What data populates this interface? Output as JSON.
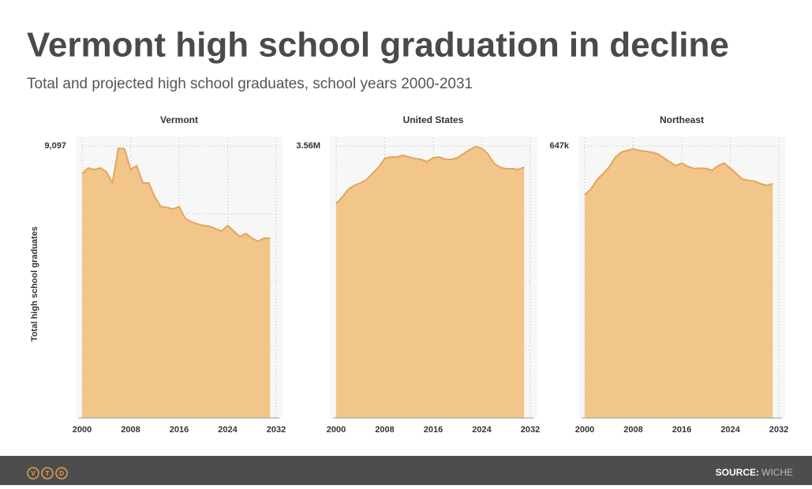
{
  "title": "Vermont high school graduation in decline",
  "subtitle": "Total and projected high school graduates, school years 2000-2031",
  "y_label": "Total high school graduates",
  "footer": {
    "logo": [
      "V",
      "T",
      "D"
    ],
    "source_label": "SOURCE:",
    "source": "WICHE"
  },
  "chart_data": [
    {
      "type": "area",
      "title": "Vermont",
      "color": "#f2c68a",
      "line_color": "#e3a55a",
      "x": [
        2000,
        2001,
        2002,
        2003,
        2004,
        2005,
        2006,
        2007,
        2008,
        2009,
        2010,
        2011,
        2012,
        2013,
        2014,
        2015,
        2016,
        2017,
        2018,
        2019,
        2020,
        2021,
        2022,
        2023,
        2024,
        2025,
        2026,
        2027,
        2028,
        2029,
        2030,
        2031
      ],
      "values": [
        8174,
        8358,
        8306,
        8358,
        8226,
        7858,
        9018,
        9000,
        8306,
        8438,
        7858,
        7858,
        7383,
        7067,
        7040,
        6988,
        7067,
        6671,
        6566,
        6487,
        6434,
        6408,
        6328,
        6250,
        6434,
        6250,
        6065,
        6170,
        6013,
        5906,
        6013,
        6013
      ],
      "xlim": [
        2000,
        2032
      ],
      "xticks": [
        2000,
        2008,
        2016,
        2024,
        2032
      ],
      "ylim": [
        0,
        9097
      ],
      "yticks": [
        {
          "value": 9097,
          "label": "9,097"
        }
      ]
    },
    {
      "type": "area",
      "title": "United States",
      "color": "#f2c68a",
      "line_color": "#e3a55a",
      "x": [
        2000,
        2001,
        2002,
        2003,
        2004,
        2005,
        2006,
        2007,
        2008,
        2009,
        2010,
        2011,
        2012,
        2013,
        2014,
        2015,
        2016,
        2017,
        2018,
        2019,
        2020,
        2021,
        2022,
        2023,
        2024,
        2025,
        2026,
        2027,
        2028,
        2029,
        2030,
        2031
      ],
      "values": [
        2807000,
        2889000,
        2992000,
        3044000,
        3075000,
        3116000,
        3199000,
        3281000,
        3395000,
        3415000,
        3415000,
        3436000,
        3415000,
        3395000,
        3384000,
        3354000,
        3405000,
        3415000,
        3384000,
        3384000,
        3405000,
        3457000,
        3508000,
        3550000,
        3529000,
        3457000,
        3333000,
        3281000,
        3261000,
        3261000,
        3251000,
        3281000
      ],
      "xlim": [
        2000,
        2032
      ],
      "xticks": [
        2000,
        2008,
        2016,
        2024,
        2032
      ],
      "ylim": [
        0,
        3560000
      ],
      "yticks": [
        {
          "value": 3560000,
          "label": "3.56M"
        }
      ]
    },
    {
      "type": "area",
      "title": "Northeast",
      "color": "#f2c68a",
      "line_color": "#e3a55a",
      "x": [
        2000,
        2001,
        2002,
        2003,
        2004,
        2005,
        2006,
        2007,
        2008,
        2009,
        2010,
        2011,
        2012,
        2013,
        2014,
        2015,
        2016,
        2017,
        2018,
        2019,
        2020,
        2021,
        2022,
        2023,
        2024,
        2025,
        2026,
        2027,
        2028,
        2029,
        2030,
        2031
      ],
      "values": [
        531000,
        544000,
        566000,
        581000,
        596000,
        619000,
        632000,
        636000,
        640000,
        636000,
        634000,
        632000,
        628000,
        619000,
        609000,
        600000,
        606000,
        598000,
        593000,
        594000,
        593000,
        589000,
        600000,
        606000,
        594000,
        581000,
        568000,
        565000,
        563000,
        557000,
        553000,
        557000
      ],
      "xlim": [
        2000,
        2032
      ],
      "xticks": [
        2000,
        2008,
        2016,
        2024,
        2032
      ],
      "ylim": [
        0,
        647000
      ],
      "yticks": [
        {
          "value": 647000,
          "label": "647k"
        }
      ]
    }
  ]
}
